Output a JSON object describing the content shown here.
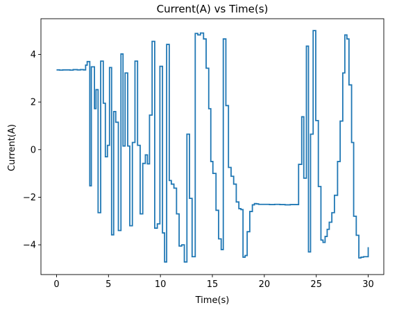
{
  "chart_data": {
    "type": "line",
    "title": "Current(A) vs Time(s)",
    "xlabel": "Time(s)",
    "ylabel": "Current(A)",
    "xlim": [
      -1.5,
      31.5
    ],
    "ylim": [
      -5.25,
      5.5
    ],
    "xticks": [
      0,
      5,
      10,
      15,
      20,
      25,
      30
    ],
    "yticks": [
      -4,
      -2,
      0,
      2,
      4
    ],
    "grid": false,
    "legend": "none",
    "series": [
      {
        "color": "#1f77b4",
        "step": true,
        "x": [
          0,
          0.3,
          0.6,
          1.0,
          1.3,
          1.6,
          2.0,
          2.3,
          2.6,
          2.8,
          2.95,
          3.2,
          3.35,
          3.65,
          3.8,
          4.0,
          4.25,
          4.5,
          4.7,
          4.9,
          5.1,
          5.3,
          5.5,
          5.7,
          5.95,
          6.2,
          6.4,
          6.6,
          6.85,
          7.05,
          7.3,
          7.55,
          7.8,
          8.05,
          8.3,
          8.55,
          8.75,
          8.95,
          9.2,
          9.45,
          9.7,
          9.95,
          10.2,
          10.4,
          10.6,
          10.85,
          11.05,
          11.3,
          11.55,
          11.8,
          12.05,
          12.3,
          12.55,
          12.8,
          13.05,
          13.35,
          13.6,
          13.85,
          14.15,
          14.4,
          14.65,
          14.85,
          15.05,
          15.35,
          15.6,
          15.85,
          16.05,
          16.3,
          16.55,
          16.8,
          17.05,
          17.3,
          17.55,
          17.75,
          17.95,
          18.15,
          18.35,
          18.6,
          18.85,
          19.05,
          19.25,
          19.45,
          19.65,
          19.9,
          20.5,
          21.0,
          21.5,
          22.0,
          22.5,
          23.0,
          23.3,
          23.6,
          23.8,
          24.05,
          24.25,
          24.45,
          24.7,
          24.95,
          25.2,
          25.45,
          25.65,
          25.85,
          26.05,
          26.25,
          26.5,
          26.75,
          27.05,
          27.3,
          27.55,
          27.75,
          27.95,
          28.15,
          28.4,
          28.6,
          28.85,
          29.1,
          29.3,
          29.55,
          29.75,
          29.95,
          30.0
        ],
        "y": [
          3.35,
          3.34,
          3.35,
          3.35,
          3.34,
          3.36,
          3.35,
          3.36,
          3.35,
          3.55,
          3.7,
          -1.52,
          3.48,
          1.72,
          2.52,
          -2.65,
          3.72,
          1.95,
          -0.3,
          0.18,
          3.45,
          -3.58,
          1.6,
          1.15,
          -3.4,
          4.02,
          0.15,
          3.22,
          0.15,
          -3.2,
          0.3,
          3.72,
          0.18,
          -2.7,
          -0.58,
          -0.22,
          -0.6,
          1.45,
          4.55,
          -3.3,
          -3.12,
          3.5,
          -3.5,
          -4.72,
          4.42,
          -1.3,
          -1.45,
          -1.62,
          -2.7,
          -4.05,
          -4.0,
          -4.72,
          0.65,
          -2.05,
          -4.5,
          4.88,
          4.82,
          4.9,
          4.65,
          3.42,
          1.72,
          -0.5,
          -1.0,
          -2.55,
          -3.75,
          -4.2,
          4.65,
          1.85,
          -0.75,
          -1.12,
          -1.45,
          -2.2,
          -2.48,
          -2.52,
          -4.52,
          -4.45,
          -3.45,
          -2.6,
          -2.32,
          -2.27,
          -2.28,
          -2.3,
          -2.3,
          -2.3,
          -2.31,
          -2.3,
          -2.31,
          -2.32,
          -2.31,
          -2.31,
          -0.62,
          1.38,
          -1.2,
          4.35,
          -4.3,
          0.65,
          5.0,
          1.22,
          -1.55,
          -3.8,
          -3.9,
          -3.65,
          -3.35,
          -3.05,
          -2.65,
          -1.92,
          -0.5,
          1.2,
          3.22,
          4.82,
          4.65,
          2.72,
          0.3,
          -2.8,
          -3.6,
          -4.55,
          -4.52,
          -4.5,
          -4.5,
          -4.5,
          -4.1
        ]
      }
    ]
  }
}
